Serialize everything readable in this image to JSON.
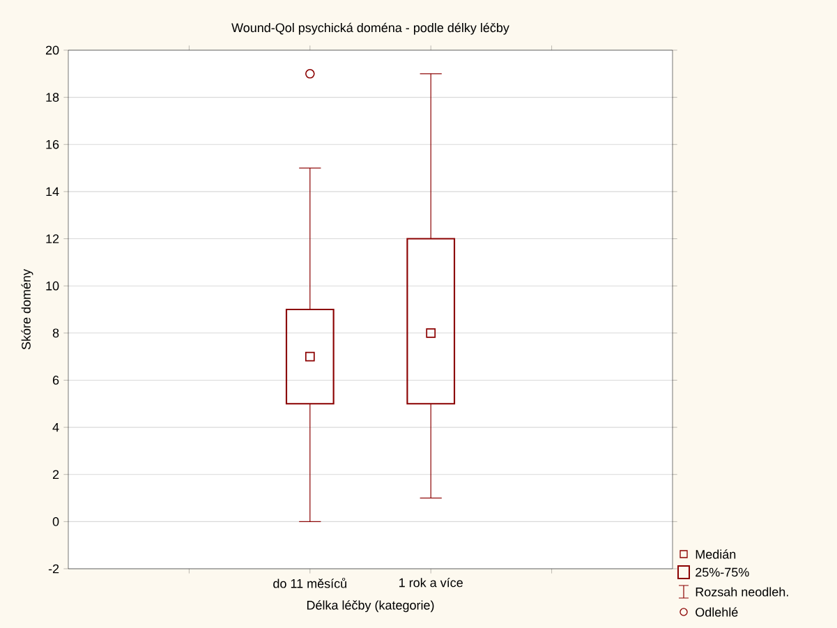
{
  "chart_data": {
    "type": "box",
    "title": "Wound-Qol psychická doména - podle délky léčby",
    "xlabel": "Délka léčby (kategorie)",
    "ylabel": "Skóre domény",
    "categories": [
      "do 11 měsíců",
      "1 rok a více"
    ],
    "color": "#8b0000",
    "marker": "square",
    "grid": "y",
    "boxes": [
      {
        "low": 0,
        "q1": 5,
        "median": 7,
        "q3": 9,
        "high": 15,
        "outliers": [
          19
        ]
      },
      {
        "low": 1,
        "q1": 5,
        "median": 8,
        "q3": 12,
        "high": 19
      }
    ],
    "ylim": [
      -2,
      20
    ],
    "yticks": [
      -2,
      0,
      2,
      4,
      6,
      8,
      10,
      12,
      14,
      16,
      18,
      20
    ],
    "annotations": [
      "Medián",
      "25%-75%",
      "Rozsah neodleh.",
      "Odlehlé"
    ]
  }
}
